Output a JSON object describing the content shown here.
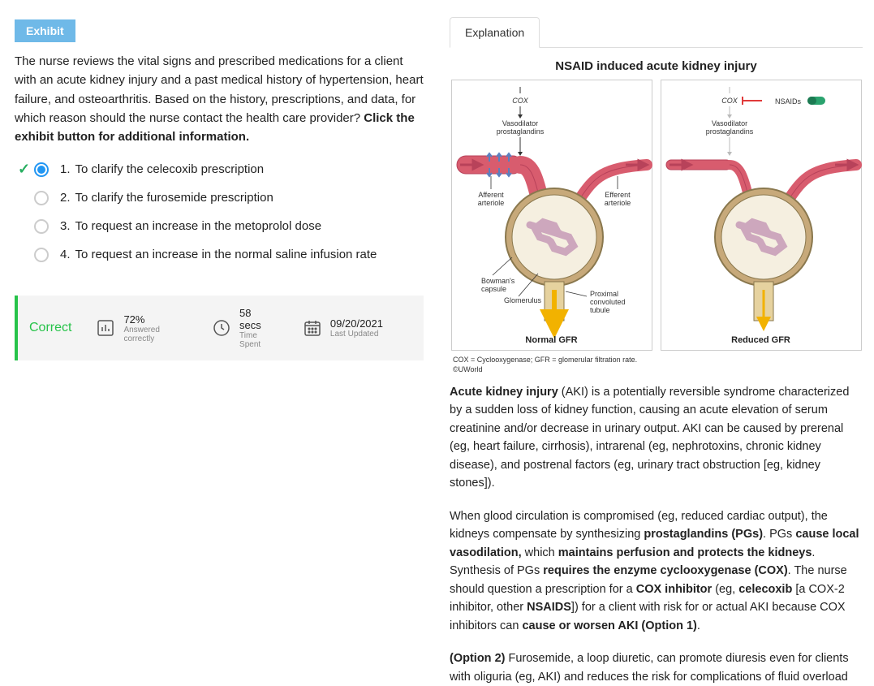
{
  "left": {
    "exhibit_label": "Exhibit",
    "question_part1": "The nurse reviews the vital signs and prescribed medications for a client with an acute kidney injury and a past medical history of hypertension, heart failure, and osteoarthritis.  Based on the history, prescriptions, and data, for which reason should the nurse contact the health care provider?  ",
    "question_bold": "Click the exhibit button for additional information.",
    "options": [
      {
        "num": "1.",
        "text": "To clarify the celecoxib prescription",
        "selected": true
      },
      {
        "num": "2.",
        "text": "To clarify the furosemide prescription",
        "selected": false
      },
      {
        "num": "3.",
        "text": "To request an increase in the metoprolol dose",
        "selected": false
      },
      {
        "num": "4.",
        "text": "To request an increase in the normal saline infusion rate",
        "selected": false
      }
    ],
    "result_label": "Correct",
    "stats": {
      "percent": "72%",
      "percent_sub": "Answered correctly",
      "time": "58 secs",
      "time_sub": "Time Spent",
      "date": "09/20/2021",
      "date_sub": "Last Updated"
    }
  },
  "right": {
    "tab_label": "Explanation",
    "figure_title": "NSAID induced acute kidney injury",
    "diagram": {
      "cox_label": "COX",
      "nsaids_label": "NSAIDs",
      "vasodilator_label": "Vasodilator\nprostaglandins",
      "afferent_label": "Afferent\narteriole",
      "efferent_label": "Efferent\narteriole",
      "bowman_label": "Bowman's\ncapsule",
      "glomerulus_label": "Glomerulus",
      "pct_label": "Proximal\nconvoluted\ntubule",
      "normal_caption": "Normal GFR",
      "reduced_caption": "Reduced GFR",
      "colors": {
        "artery": "#d85c6e",
        "artery_dark": "#b8425a",
        "capsule_fill": "#c7a97a",
        "capsule_stroke": "#8a784e",
        "glomerulus": "#cda7bd",
        "tubule": "#e6d29f",
        "flow_arrow": "#f2b200",
        "nsaid_pill": "#2aa36e",
        "block_red": "#e03a3a",
        "flow_blue": "#5a7fbf",
        "cox_grey": "#bbbbbb"
      }
    },
    "footnote": "COX = Cyclooxygenase; GFR = glomerular filtration rate.",
    "copyright": "©UWorld",
    "para1_html": "<strong>Acute kidney injury</strong> (AKI) is a potentially reversible syndrome characterized by a sudden loss of kidney function, causing an acute elevation of serum creatinine and/or decrease in urinary output.  AKI can be caused by prerenal (eg, heart failure, cirrhosis), intrarenal (eg, nephrotoxins, chronic kidney disease), and postrenal factors (eg, urinary tract obstruction [eg, kidney stones]).",
    "para2_html": "When glood circulation is compromised (eg, reduced cardiac output), the kidneys compensate by synthesizing <strong>prostaglandins (PGs)</strong>.  PGs <strong>cause local vasodilation,</strong> which <strong>maintains perfusion and protects the kidneys</strong>. Synthesis of PGs <strong>requires the enzyme cyclooxygenase (COX)</strong>.  The nurse should question a prescription for a <strong>COX inhibitor</strong> (eg, <strong>celecoxib</strong> [a COX-2 inhibitor, other <strong>NSAIDS</strong>]) for a client with risk for or actual AKI because COX inhibitors can <strong>cause or worsen AKI (Option 1)</strong>.",
    "para3_html": "<strong>(Option 2)</strong> Furosemide, a loop diuretic, can promote diuresis even for clients with oliguria (eg, AKI) and reduces the risk for complications of fluid overload"
  }
}
